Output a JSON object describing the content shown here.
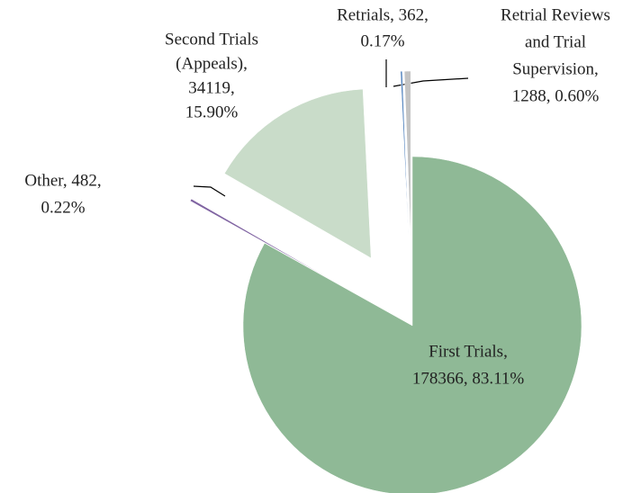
{
  "chart_data": {
    "type": "pie",
    "categories": [
      "First Trials",
      "Other",
      "Second Trials (Appeals)",
      "Retrials",
      "Retrial Reviews and Trial Supervision"
    ],
    "values": [
      178366,
      482,
      34119,
      362,
      1288
    ],
    "colors": [
      "#8fb996",
      "#8064a2",
      "#c9dcc9",
      "#4f81bd",
      "#c4c4c4"
    ],
    "labels": [
      [
        "First Trials,",
        "178366,  83.11%"
      ],
      [
        "Other, 482,",
        "0.22%"
      ],
      [
        "Second Trials",
        "(Appeals),",
        "34119,",
        "15.90%"
      ],
      [
        "Retrials, 362,",
        "0.17%"
      ],
      [
        "Retrial Reviews",
        "and Trial",
        "Supervision,",
        "1288,  0.60%"
      ]
    ]
  }
}
